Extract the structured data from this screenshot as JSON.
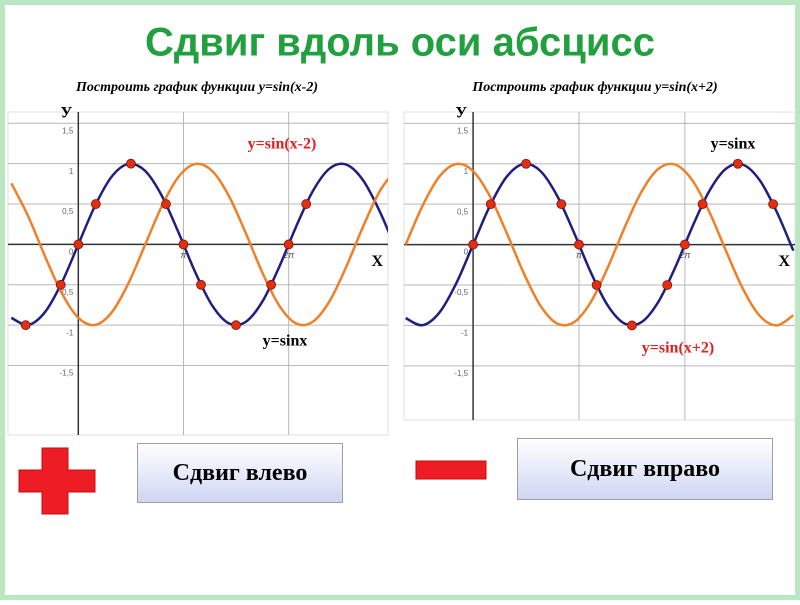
{
  "title": "Сдвиг вдоль оси абсцисс",
  "chart_data": [
    {
      "type": "line",
      "title": "Построить график функции y=sin(x-2)",
      "x_label": "Х",
      "y_label": "У",
      "xlim": [
        -2.1,
        9.25
      ],
      "ylim": [
        -2.36,
        1.64
      ],
      "xticks": [
        {
          "value": 3.14159,
          "label": "π"
        },
        {
          "value": 6.28319,
          "label": "2π"
        }
      ],
      "yticks": [
        {
          "value": -1.5,
          "label": "-1,5"
        },
        -1,
        {
          "value": -0.5,
          "label": "-0,5"
        },
        0,
        {
          "value": 0.5,
          "label": "0,5"
        },
        1,
        {
          "value": 1.5,
          "label": "1,5"
        }
      ],
      "grid": true,
      "x": [
        -2,
        -1.5,
        -1,
        -0.5,
        0,
        0.5,
        1,
        1.5,
        2,
        2.5,
        3,
        3.5,
        4,
        4.5,
        5,
        5.5,
        6,
        6.5,
        7,
        7.5,
        8,
        8.5,
        9,
        9.5
      ],
      "series": [
        {
          "name": "y=sinx",
          "color": "#1f1f80",
          "label_color": "#000000",
          "values": [
            -0.909,
            -0.997,
            -0.841,
            -0.479,
            0,
            0.479,
            0.841,
            0.997,
            0.909,
            0.598,
            0.141,
            -0.351,
            -0.757,
            -0.978,
            -0.959,
            -0.706,
            -0.279,
            0.215,
            0.657,
            0.938,
            0.989,
            0.798,
            0.412,
            -0.075
          ]
        },
        {
          "name": "y=sin(x-2)",
          "color": "#f08028",
          "label_color": "#e02020",
          "values": [
            0.757,
            0.351,
            -0.141,
            -0.598,
            -0.909,
            -0.997,
            -0.841,
            -0.479,
            0,
            0.479,
            0.841,
            0.997,
            0.909,
            0.598,
            0.141,
            -0.351,
            -0.757,
            -0.978,
            -0.959,
            -0.706,
            -0.279,
            0.215,
            0.657,
            0.938
          ]
        }
      ],
      "points": {
        "color": "#e03010",
        "x": [
          -1.571,
          -0.524,
          0,
          0.524,
          1.571,
          2.618,
          3.142,
          3.665,
          4.712,
          5.76,
          6.283,
          6.807
        ],
        "values": [
          -1,
          -0.5,
          0,
          0.5,
          1,
          0.5,
          0,
          -0.5,
          -1,
          -0.5,
          0,
          0.5
        ]
      }
    },
    {
      "type": "line",
      "title": "Построить график функции y=sin(x+2)",
      "x_label": "Х",
      "y_label": "У",
      "xlim": [
        -2.05,
        9.55
      ],
      "ylim": [
        -2.17,
        1.64
      ],
      "xticks": [
        {
          "value": 3.14159,
          "label": "π"
        },
        {
          "value": 6.28319,
          "label": "2π"
        }
      ],
      "yticks": [
        {
          "value": -1.5,
          "label": "-1,5"
        },
        -1,
        {
          "value": -0.5,
          "label": "-0,5"
        },
        0,
        {
          "value": 0.5,
          "label": "0,5"
        },
        1,
        {
          "value": 1.5,
          "label": "1,5"
        }
      ],
      "grid": true,
      "x": [
        -2,
        -1.5,
        -1,
        -0.5,
        0,
        0.5,
        1,
        1.5,
        2,
        2.5,
        3,
        3.5,
        4,
        4.5,
        5,
        5.5,
        6,
        6.5,
        7,
        7.5,
        8,
        8.5,
        9,
        9.5
      ],
      "series": [
        {
          "name": "y=sinx",
          "color": "#1f1f80",
          "label_color": "#000000",
          "values": [
            -0.909,
            -0.997,
            -0.841,
            -0.479,
            0,
            0.479,
            0.841,
            0.997,
            0.909,
            0.598,
            0.141,
            -0.351,
            -0.757,
            -0.978,
            -0.959,
            -0.706,
            -0.279,
            0.215,
            0.657,
            0.938,
            0.989,
            0.798,
            0.412,
            -0.075
          ]
        },
        {
          "name": "y=sin(x+2)",
          "color": "#f08028",
          "label_color": "#e02020",
          "values": [
            0,
            0.479,
            0.841,
            0.997,
            0.909,
            0.598,
            0.141,
            -0.351,
            -0.757,
            -0.978,
            -0.959,
            -0.706,
            -0.279,
            0.215,
            0.657,
            0.938,
            0.989,
            0.798,
            0.412,
            -0.075,
            -0.544,
            -0.88,
            -1.0,
            -0.875
          ]
        }
      ],
      "points": {
        "color": "#e03010",
        "x": [
          0,
          0.524,
          1.571,
          2.618,
          3.142,
          3.665,
          4.712,
          5.76,
          6.283,
          6.807,
          7.854,
          8.901
        ],
        "values": [
          0,
          0.5,
          1,
          0.5,
          0,
          -0.5,
          -1,
          -0.5,
          0,
          0.5,
          1,
          0.5
        ]
      }
    }
  ],
  "buttons": [
    "Сдвиг влево",
    "Сдвиг вправо"
  ]
}
